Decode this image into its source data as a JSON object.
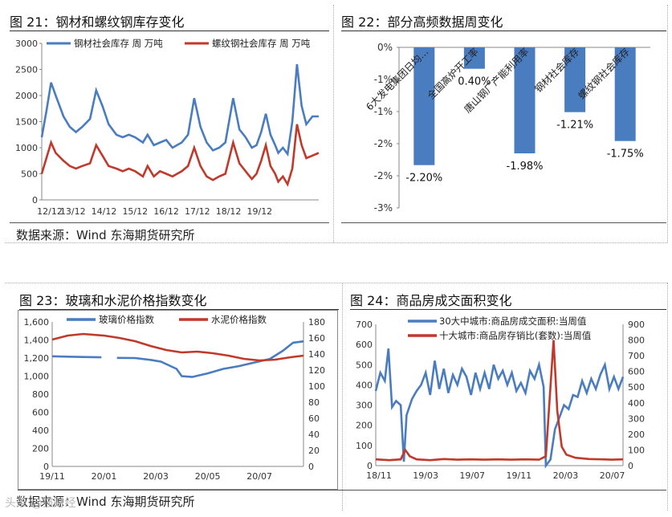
{
  "figures": {
    "fig21": {
      "title": "图 21：钢材和螺纹钢库存变化"
    },
    "fig22": {
      "title": "图 22：部分高频数据周变化"
    },
    "fig23": {
      "title": "图 23：玻璃和水泥价格指数变化"
    },
    "fig24": {
      "title": "图 24：商品房成交面积变化"
    }
  },
  "sources": {
    "left": "数据来源：Wind   东海期货研究所",
    "bottom": "数据来源：Wind   东海期货研究所"
  },
  "watermark": "头条 @猫财经",
  "colors": {
    "blue": "#4a7cc0",
    "red": "#c0392b",
    "bar": "#4a7cc0"
  },
  "chart_data": [
    {
      "id": "fig21",
      "type": "line",
      "x_ticks": [
        "12/12",
        "13/12",
        "14/12",
        "15/12",
        "16/12",
        "17/12",
        "18/12",
        "19/12"
      ],
      "ylim": [
        0,
        3000
      ],
      "y_ticks": [
        0,
        500,
        1000,
        1500,
        2000,
        2500,
        3000
      ],
      "series": [
        {
          "name": "钢材社会库存 周 万吨",
          "color": "#4a7cc0",
          "points": [
            [
              0,
              1200
            ],
            [
              0.15,
              1700
            ],
            [
              0.3,
              2250
            ],
            [
              0.45,
              2000
            ],
            [
              0.7,
              1600
            ],
            [
              0.9,
              1400
            ],
            [
              1.1,
              1300
            ],
            [
              1.3,
              1400
            ],
            [
              1.55,
              1550
            ],
            [
              1.75,
              2100
            ],
            [
              1.95,
              1800
            ],
            [
              2.15,
              1450
            ],
            [
              2.4,
              1250
            ],
            [
              2.6,
              1200
            ],
            [
              2.8,
              1250
            ],
            [
              3.0,
              1200
            ],
            [
              3.25,
              1100
            ],
            [
              3.4,
              1250
            ],
            [
              3.6,
              1050
            ],
            [
              3.8,
              1100
            ],
            [
              4.0,
              1150
            ],
            [
              4.2,
              1000
            ],
            [
              4.5,
              1100
            ],
            [
              4.7,
              1250
            ],
            [
              4.9,
              1950
            ],
            [
              5.1,
              1400
            ],
            [
              5.3,
              1100
            ],
            [
              5.5,
              950
            ],
            [
              5.7,
              1000
            ],
            [
              5.9,
              1100
            ],
            [
              6.15,
              1950
            ],
            [
              6.35,
              1350
            ],
            [
              6.55,
              1200
            ],
            [
              6.75,
              1000
            ],
            [
              6.9,
              1050
            ],
            [
              7.05,
              1300
            ],
            [
              7.2,
              1650
            ],
            [
              7.35,
              1250
            ],
            [
              7.5,
              1050
            ],
            [
              7.6,
              900
            ],
            [
              7.75,
              1000
            ],
            [
              7.9,
              880
            ],
            [
              8.05,
              1500
            ],
            [
              8.2,
              2600
            ],
            [
              8.35,
              1800
            ],
            [
              8.5,
              1450
            ],
            [
              8.7,
              1600
            ],
            [
              8.9,
              1600
            ]
          ]
        },
        {
          "name": "螺纹钢社会库存 周 万吨",
          "color": "#c0392b",
          "points": [
            [
              0,
              500
            ],
            [
              0.15,
              800
            ],
            [
              0.3,
              1100
            ],
            [
              0.45,
              900
            ],
            [
              0.7,
              750
            ],
            [
              0.9,
              650
            ],
            [
              1.1,
              600
            ],
            [
              1.3,
              650
            ],
            [
              1.55,
              700
            ],
            [
              1.75,
              1050
            ],
            [
              1.95,
              850
            ],
            [
              2.15,
              650
            ],
            [
              2.4,
              600
            ],
            [
              2.6,
              550
            ],
            [
              2.8,
              600
            ],
            [
              3.0,
              550
            ],
            [
              3.25,
              450
            ],
            [
              3.4,
              650
            ],
            [
              3.6,
              450
            ],
            [
              3.8,
              550
            ],
            [
              4.0,
              500
            ],
            [
              4.2,
              450
            ],
            [
              4.5,
              550
            ],
            [
              4.7,
              650
            ],
            [
              4.9,
              1000
            ],
            [
              5.1,
              650
            ],
            [
              5.3,
              450
            ],
            [
              5.5,
              380
            ],
            [
              5.7,
              450
            ],
            [
              5.9,
              500
            ],
            [
              6.15,
              1100
            ],
            [
              6.35,
              700
            ],
            [
              6.55,
              550
            ],
            [
              6.75,
              400
            ],
            [
              6.9,
              500
            ],
            [
              7.05,
              750
            ],
            [
              7.2,
              1050
            ],
            [
              7.35,
              650
            ],
            [
              7.5,
              500
            ],
            [
              7.6,
              350
            ],
            [
              7.75,
              450
            ],
            [
              7.9,
              300
            ],
            [
              8.05,
              600
            ],
            [
              8.2,
              1450
            ],
            [
              8.35,
              1050
            ],
            [
              8.5,
              800
            ],
            [
              8.7,
              850
            ],
            [
              8.9,
              900
            ]
          ]
        }
      ]
    },
    {
      "id": "fig22",
      "type": "bar",
      "categories": [
        "6大发电集团日均…",
        "全国高炉开工率",
        "唐山钢厂产能利用率",
        "钢材社会库存",
        "螺纹钢社会库存"
      ],
      "values": [
        -2.2,
        0.4,
        -1.98,
        -1.21,
        -1.75
      ],
      "value_labels": [
        "-2.20%",
        "0.40%",
        "-1.98%",
        "-1.21%",
        "-1.75%"
      ],
      "ylim": [
        -3,
        0
      ],
      "y_ticks": [
        "0%",
        "-1%",
        "-1%",
        "-2%",
        "-2%",
        "-3%"
      ]
    },
    {
      "id": "fig23",
      "type": "line",
      "x_ticks": [
        "19/11",
        "20/01",
        "20/03",
        "20/05",
        "20/07"
      ],
      "y_left": [
        0,
        200,
        400,
        600,
        800,
        "1,000",
        "1,200",
        "1,400",
        "1,600"
      ],
      "y_right": [
        0,
        20,
        40,
        60,
        80,
        100,
        120,
        140,
        160,
        180
      ],
      "series": [
        {
          "name": "玻璃价格指数",
          "color": "#4a7cc0",
          "axis": "left",
          "points": [
            [
              0,
              1220
            ],
            [
              0.3,
              1215
            ],
            [
              0.6,
              1212
            ],
            [
              0.95,
              1208
            ],
            [
              1.1,
              1200
            ],
            [
              1.25,
              1202
            ],
            [
              1.6,
              1200
            ],
            [
              1.9,
              1180
            ],
            [
              2.1,
              1160
            ],
            [
              2.4,
              1080
            ],
            [
              2.5,
              1000
            ],
            [
              2.7,
              990
            ],
            [
              3.0,
              1030
            ],
            [
              3.3,
              1080
            ],
            [
              3.6,
              1110
            ],
            [
              3.9,
              1150
            ],
            [
              4.2,
              1190
            ],
            [
              4.45,
              1280
            ],
            [
              4.65,
              1370
            ],
            [
              4.85,
              1385
            ]
          ]
        },
        {
          "name": "水泥价格指数",
          "color": "#c0392b",
          "axis": "right",
          "points": [
            [
              0,
              158
            ],
            [
              0.3,
              163
            ],
            [
              0.6,
              165
            ],
            [
              1.0,
              163
            ],
            [
              1.3,
              160
            ],
            [
              1.6,
              156
            ],
            [
              1.9,
              150
            ],
            [
              2.2,
              145
            ],
            [
              2.5,
              142
            ],
            [
              2.8,
              143
            ],
            [
              3.1,
              141
            ],
            [
              3.4,
              138
            ],
            [
              3.7,
              134
            ],
            [
              4.0,
              132
            ],
            [
              4.3,
              133
            ],
            [
              4.6,
              136
            ],
            [
              4.85,
              138
            ]
          ]
        }
      ]
    },
    {
      "id": "fig24",
      "type": "line",
      "x_ticks": [
        "18/11",
        "19/03",
        "19/07",
        "19/11",
        "20/03",
        "20/07"
      ],
      "y_left": [
        0,
        100,
        200,
        300,
        400,
        500,
        600,
        700
      ],
      "y_right": [
        0,
        100,
        200,
        300,
        400,
        500,
        600,
        700,
        800,
        900
      ],
      "series": [
        {
          "name": "30大中城市:商品房成交面积:当周值",
          "color": "#4a7cc0",
          "axis": "left",
          "points": [
            [
              0,
              370
            ],
            [
              0.1,
              460
            ],
            [
              0.2,
              420
            ],
            [
              0.28,
              580
            ],
            [
              0.36,
              290
            ],
            [
              0.45,
              320
            ],
            [
              0.55,
              300
            ],
            [
              0.62,
              20
            ],
            [
              0.68,
              250
            ],
            [
              0.8,
              330
            ],
            [
              0.9,
              370
            ],
            [
              1.0,
              400
            ],
            [
              1.1,
              460
            ],
            [
              1.2,
              350
            ],
            [
              1.3,
              520
            ],
            [
              1.4,
              380
            ],
            [
              1.5,
              480
            ],
            [
              1.6,
              360
            ],
            [
              1.7,
              450
            ],
            [
              1.8,
              400
            ],
            [
              1.9,
              480
            ],
            [
              2.0,
              440
            ],
            [
              2.1,
              350
            ],
            [
              2.2,
              460
            ],
            [
              2.3,
              380
            ],
            [
              2.4,
              460
            ],
            [
              2.5,
              380
            ],
            [
              2.6,
              500
            ],
            [
              2.7,
              430
            ],
            [
              2.8,
              470
            ],
            [
              2.9,
              400
            ],
            [
              3.0,
              460
            ],
            [
              3.1,
              370
            ],
            [
              3.2,
              410
            ],
            [
              3.3,
              360
            ],
            [
              3.4,
              470
            ],
            [
              3.5,
              430
            ],
            [
              3.6,
              500
            ],
            [
              3.7,
              390
            ],
            [
              3.75,
              0
            ],
            [
              3.85,
              30
            ],
            [
              3.95,
              180
            ],
            [
              4.05,
              240
            ],
            [
              4.15,
              300
            ],
            [
              4.25,
              280
            ],
            [
              4.35,
              350
            ],
            [
              4.45,
              340
            ],
            [
              4.55,
              420
            ],
            [
              4.65,
              360
            ],
            [
              4.75,
              430
            ],
            [
              4.85,
              380
            ],
            [
              4.95,
              450
            ],
            [
              5.05,
              500
            ],
            [
              5.15,
              380
            ],
            [
              5.25,
              440
            ],
            [
              5.35,
              380
            ],
            [
              5.45,
              440
            ]
          ]
        },
        {
          "name": "十大城市:商品房存销比(套数):当周值",
          "color": "#c0392b",
          "axis": "right",
          "points": [
            [
              0,
              40
            ],
            [
              0.3,
              35
            ],
            [
              0.55,
              40
            ],
            [
              0.65,
              100
            ],
            [
              0.75,
              60
            ],
            [
              0.9,
              40
            ],
            [
              1.2,
              35
            ],
            [
              1.5,
              42
            ],
            [
              1.8,
              38
            ],
            [
              2.1,
              40
            ],
            [
              2.4,
              38
            ],
            [
              2.7,
              40
            ],
            [
              3.0,
              38
            ],
            [
              3.3,
              40
            ],
            [
              3.6,
              38
            ],
            [
              3.75,
              60
            ],
            [
              3.85,
              500
            ],
            [
              3.92,
              800
            ],
            [
              4.0,
              350
            ],
            [
              4.1,
              120
            ],
            [
              4.2,
              70
            ],
            [
              4.4,
              50
            ],
            [
              4.7,
              42
            ],
            [
              5.0,
              40
            ],
            [
              5.2,
              38
            ],
            [
              5.45,
              40
            ]
          ]
        }
      ]
    }
  ]
}
